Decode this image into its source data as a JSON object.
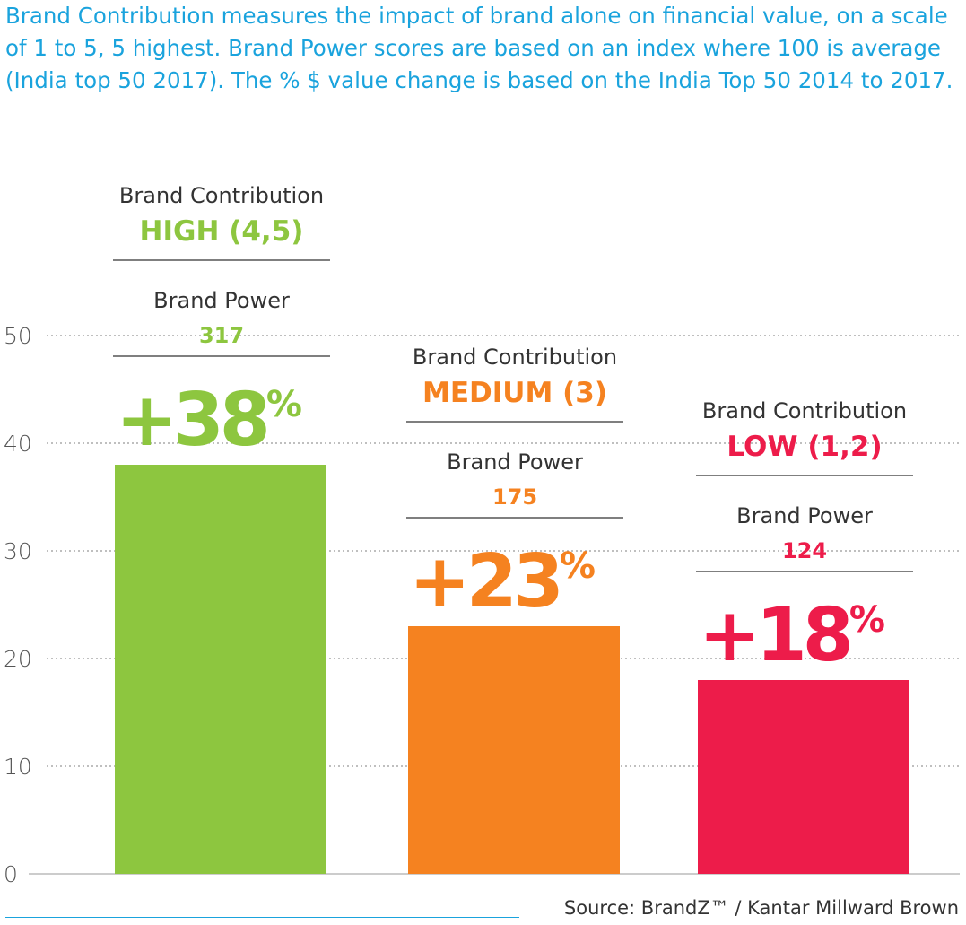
{
  "intro": "Brand Contribution measures the impact of brand alone on financial value, on a scale of 1 to 5, 5 highest. Brand Power scores are based on an index where 100 is average (India top 50 2017). The % $ value change is based on the India Top 50 2014 to 2017.",
  "source": "Source: BrandZ™ / Kantar Millward Brown",
  "colors": {
    "high": "#8dc63f",
    "medium": "#f58220",
    "low": "#ed1c4a",
    "grid": "#999999",
    "axis_text": "#555555",
    "intro": "#1aa3dd"
  },
  "chart_data": {
    "type": "bar",
    "ylim": [
      0,
      50
    ],
    "yticks": [
      0,
      10,
      20,
      30,
      40,
      50
    ],
    "grid": true,
    "bars": [
      {
        "contribution_label": "Brand Contribution",
        "contribution_level": "HIGH (4,5)",
        "power_label": "Brand Power",
        "power_value": "317",
        "value": 38,
        "pct_number": "+38",
        "pct_sign": "%",
        "color": "#8dc63f"
      },
      {
        "contribution_label": "Brand Contribution",
        "contribution_level": "MEDIUM (3)",
        "power_label": "Brand Power",
        "power_value": "175",
        "value": 23,
        "pct_number": "+23",
        "pct_sign": "%",
        "color": "#f58220"
      },
      {
        "contribution_label": "Brand Contribution",
        "contribution_level": "LOW (1,2)",
        "power_label": "Brand Power",
        "power_value": "124",
        "value": 18,
        "pct_number": "+18",
        "pct_sign": "%",
        "color": "#ed1c4a"
      }
    ]
  }
}
